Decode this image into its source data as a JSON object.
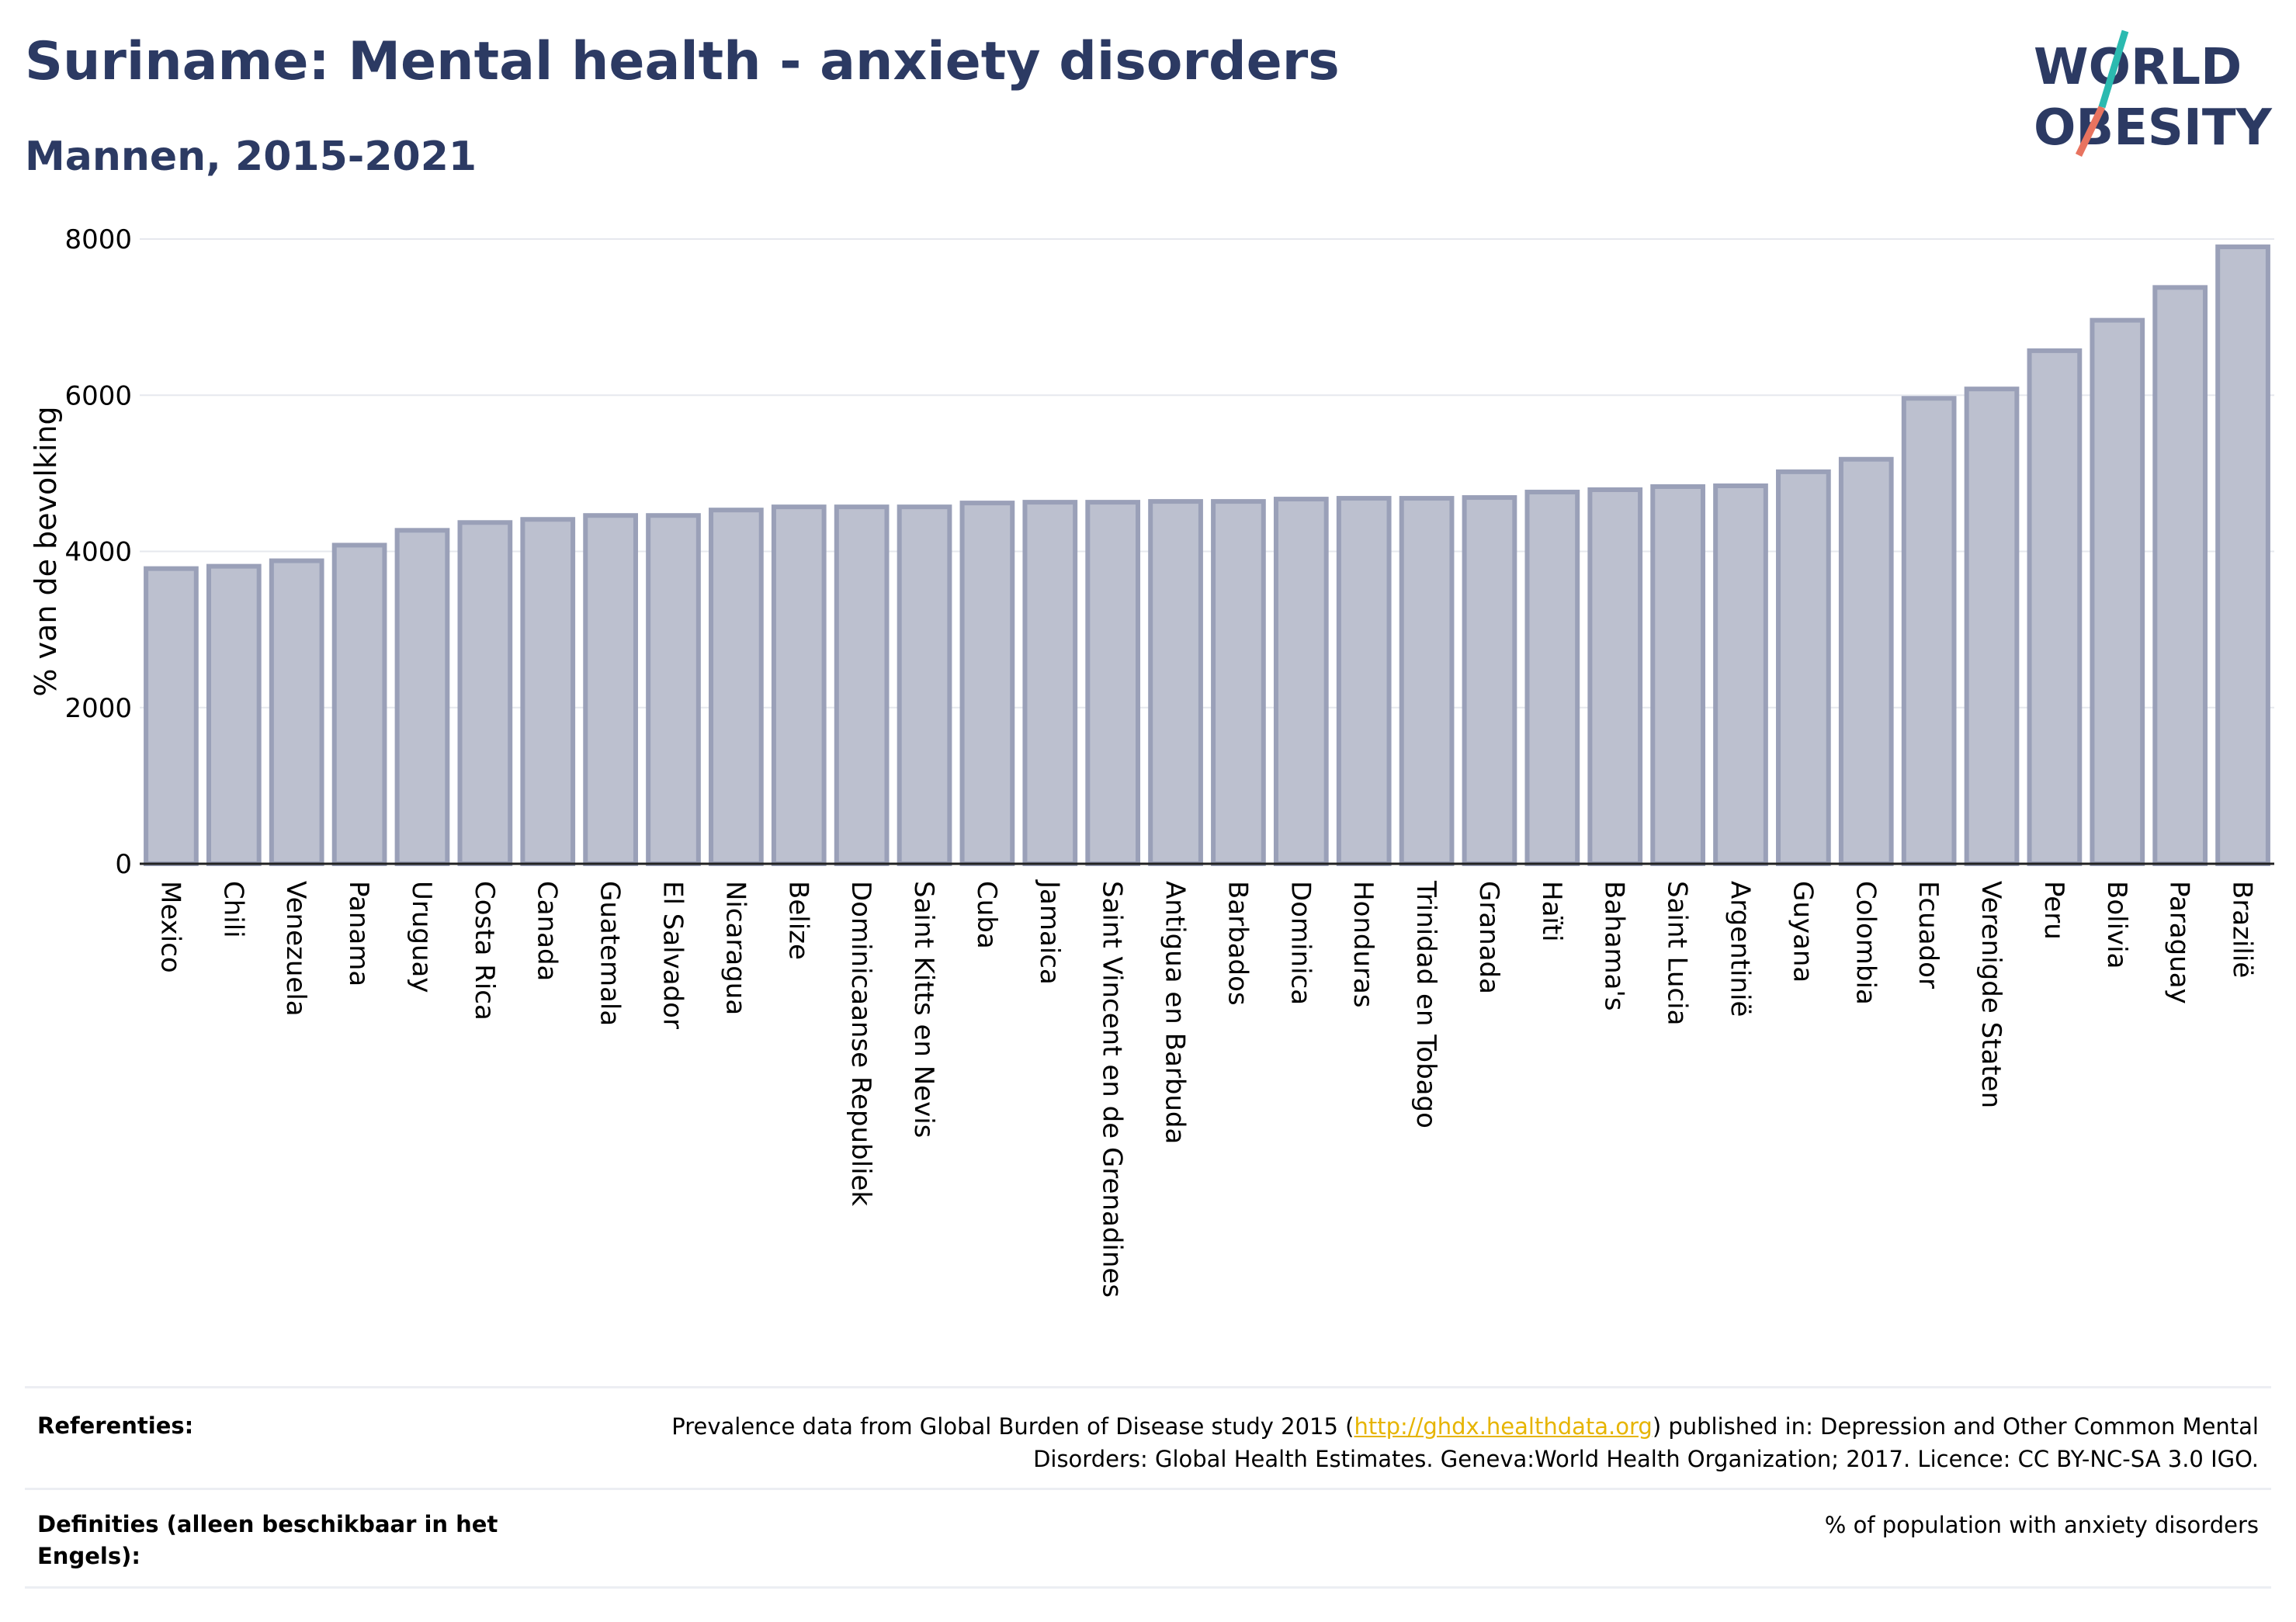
{
  "header": {
    "title": "Suriname: Mental health - anxiety disorders",
    "subtitle": "Mannen, 2015-2021"
  },
  "logo": {
    "line1": "WORLD",
    "line2": "OBESITY"
  },
  "colors": {
    "bar_fill": "#bcc0cf",
    "bar_stroke": "#9aa0b8",
    "title": "#2c3a63",
    "logo_teal": "#2bbab0",
    "logo_coral": "#e8735f",
    "link": "#e6b400"
  },
  "chart_data": {
    "type": "bar",
    "ylabel": "% van de bevolking",
    "xlabel": "",
    "ylim": [
      0,
      8000
    ],
    "yticks": [
      0,
      2000,
      4000,
      6000,
      8000
    ],
    "grid": true,
    "categories": [
      "Mexico",
      "Chili",
      "Venezuela",
      "Panama",
      "Uruguay",
      "Costa Rica",
      "Canada",
      "Guatemala",
      "El Salvador",
      "Nicaragua",
      "Belize",
      "Dominicaanse Republiek",
      "Saint Kitts en Nevis",
      "Cuba",
      "Jamaica",
      "Saint Vincent en de Grenadines",
      "Antigua en Barbuda",
      "Barbados",
      "Dominica",
      "Honduras",
      "Trinidad en Tobago",
      "Granada",
      "Haïti",
      "Bahama's",
      "Saint Lucia",
      "Argentinië",
      "Guyana",
      "Colombia",
      "Ecuador",
      "Verenigde Staten",
      "Peru",
      "Bolivia",
      "Paraguay",
      "Brazilië"
    ],
    "values": [
      3780,
      3810,
      3880,
      4080,
      4270,
      4370,
      4410,
      4460,
      4460,
      4530,
      4570,
      4570,
      4570,
      4620,
      4630,
      4630,
      4640,
      4640,
      4670,
      4680,
      4680,
      4690,
      4760,
      4790,
      4830,
      4840,
      5020,
      5180,
      5960,
      6080,
      6570,
      6960,
      7380,
      7900
    ]
  },
  "references": {
    "label": "Referenties:",
    "text_before": "Prevalence data from Global Burden of Disease study 2015 (",
    "link": "http://ghdx.healthdata.org",
    "text_after": ") published in: Depression and Other Common Mental Disorders: Global Health Estimates. Geneva:World Health Organization; 2017. Licence: CC BY-NC-SA 3.0 IGO."
  },
  "definitions": {
    "label": "Definities (alleen beschikbaar in het Engels):",
    "text": "% of population with anxiety disorders"
  }
}
